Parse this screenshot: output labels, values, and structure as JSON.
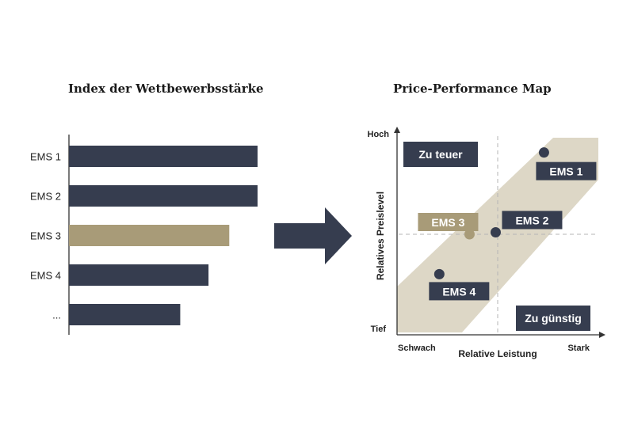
{
  "colors": {
    "navy": "#363d4f",
    "gold": "#a89b78",
    "band": "#ddd7c6",
    "grid": "#b5b5b5",
    "axis": "#333333"
  },
  "chart_data": [
    {
      "type": "bar",
      "orientation": "horizontal",
      "title": "Index der Wettbewerbsstärke",
      "categories": [
        "EMS 1",
        "EMS 2",
        "EMS 3",
        "EMS 4",
        "..."
      ],
      "values": [
        100,
        100,
        85,
        74,
        59
      ],
      "highlight": "EMS 3",
      "xlim": [
        0,
        100
      ],
      "grid": false
    },
    {
      "type": "scatter",
      "title": "Price-Performance Map",
      "xlabel": "Relative Leistung",
      "ylabel": "Relatives Preislevel",
      "x_ends": [
        "Schwach",
        "Stark"
      ],
      "y_ends": [
        "Tief",
        "Hoch"
      ],
      "xlim": [
        0,
        100
      ],
      "ylim": [
        0,
        100
      ],
      "grid": false,
      "reference_lines": {
        "x": 50,
        "y": 50
      },
      "band": {
        "description": "Preis-Leistungs-Korridor"
      },
      "points": [
        {
          "label": "EMS 1",
          "x": 73,
          "y": 91,
          "highlight": false
        },
        {
          "label": "EMS 2",
          "x": 49,
          "y": 51,
          "highlight": false
        },
        {
          "label": "EMS 3",
          "x": 36,
          "y": 50,
          "highlight": true
        },
        {
          "label": "EMS 4",
          "x": 21,
          "y": 30,
          "highlight": false
        }
      ],
      "zones": [
        "Zu teuer",
        "Zu günstig"
      ]
    }
  ]
}
